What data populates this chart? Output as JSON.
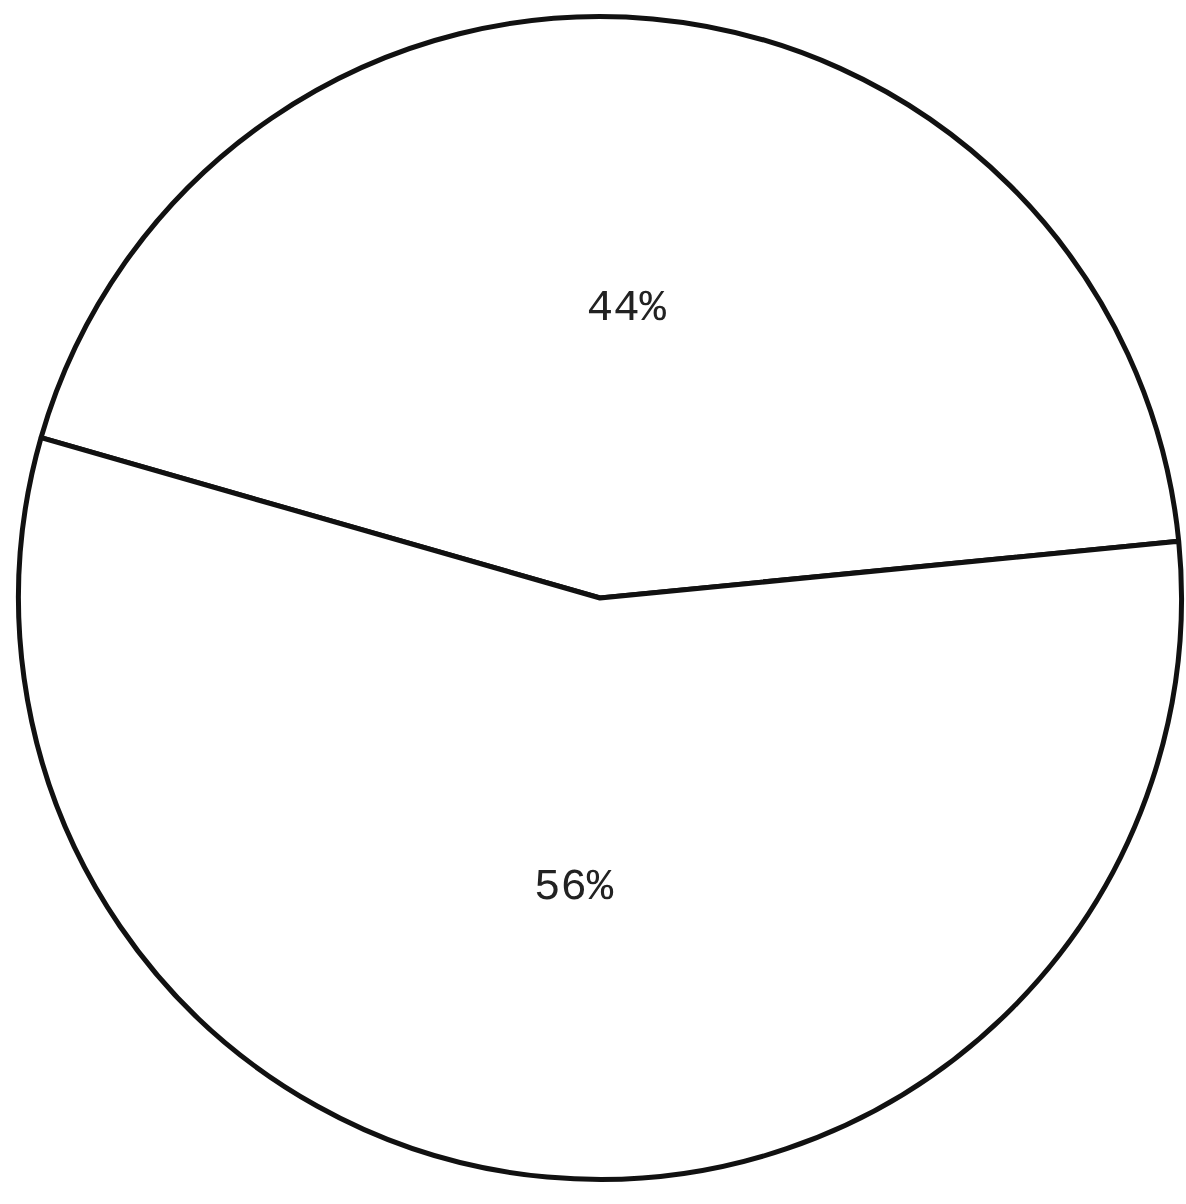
{
  "chart_data": {
    "type": "pie",
    "categories": [
      null,
      null
    ],
    "values": [
      44,
      56
    ],
    "colors": [
      "#ffffff",
      "#ffffff"
    ],
    "value_labels": [
      "44%",
      "56%"
    ],
    "legend": false
  }
}
